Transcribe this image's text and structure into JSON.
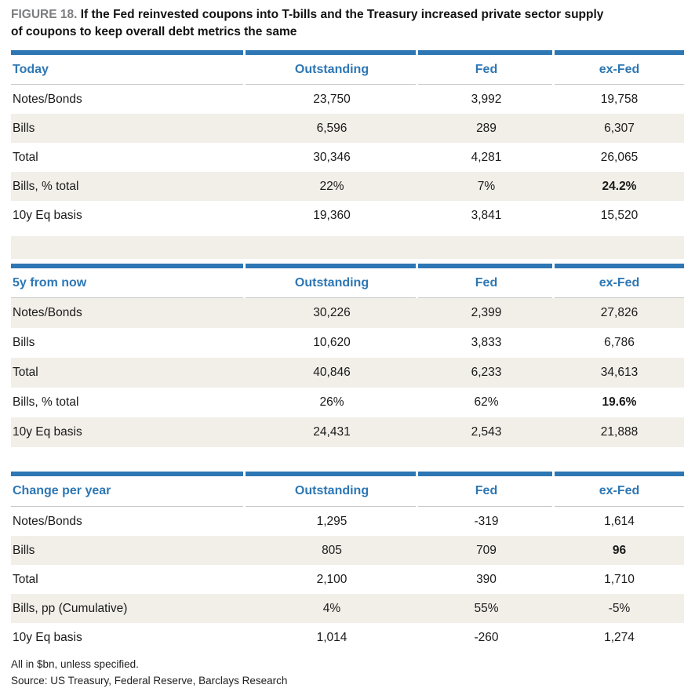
{
  "figure": {
    "label": "FIGURE 18.",
    "title_line1": "If the Fed reinvested coupons into T-bills and the Treasury increased private sector supply",
    "title_line2": "of coupons to keep overall debt metrics the same"
  },
  "tables": [
    {
      "name": "Today",
      "columns": [
        "Outstanding",
        "Fed",
        "ex-Fed"
      ],
      "rows": [
        {
          "label": "Notes/Bonds",
          "values": [
            "23,750",
            "3,992",
            "19,758"
          ],
          "bold_exfed": false
        },
        {
          "label": "Bills",
          "values": [
            "6,596",
            "289",
            "6,307"
          ],
          "bold_exfed": false
        },
        {
          "label": "Total",
          "values": [
            "30,346",
            "4,281",
            "26,065"
          ],
          "bold_exfed": false
        },
        {
          "label": "Bills, % total",
          "values": [
            "22%",
            "7%",
            "24.2%"
          ],
          "bold_exfed": true
        },
        {
          "label": "10y Eq basis",
          "values": [
            "19,360",
            "3,841",
            "15,520"
          ],
          "bold_exfed": false
        }
      ]
    },
    {
      "name": "5y from now",
      "columns": [
        "Outstanding",
        "Fed",
        "ex-Fed"
      ],
      "rows": [
        {
          "label": "Notes/Bonds",
          "values": [
            "30,226",
            "2,399",
            "27,826"
          ],
          "bold_exfed": false
        },
        {
          "label": "Bills",
          "values": [
            "10,620",
            "3,833",
            "6,786"
          ],
          "bold_exfed": false
        },
        {
          "label": "Total",
          "values": [
            "40,846",
            "6,233",
            "34,613"
          ],
          "bold_exfed": false
        },
        {
          "label": "Bills, % total",
          "values": [
            "26%",
            "62%",
            "19.6%"
          ],
          "bold_exfed": true
        },
        {
          "label": "10y Eq basis",
          "values": [
            "24,431",
            "2,543",
            "21,888"
          ],
          "bold_exfed": false
        }
      ]
    },
    {
      "name": "Change per year",
      "columns": [
        "Outstanding",
        "Fed",
        "ex-Fed"
      ],
      "rows": [
        {
          "label": "Notes/Bonds",
          "values": [
            "1,295",
            "-319",
            "1,614"
          ],
          "bold_exfed": false
        },
        {
          "label": "Bills",
          "values": [
            "805",
            "709",
            "96"
          ],
          "bold_exfed": true
        },
        {
          "label": "Total",
          "values": [
            "2,100",
            "390",
            "1,710"
          ],
          "bold_exfed": false
        },
        {
          "label": "Bills, pp (Cumulative)",
          "values": [
            "4%",
            "55%",
            "-5%"
          ],
          "bold_exfed": false
        },
        {
          "label": "10y Eq basis",
          "values": [
            "1,014",
            "-260",
            "1,274"
          ],
          "bold_exfed": false
        }
      ]
    }
  ],
  "footnotes": {
    "units": "All in $bn, unless specified.",
    "source": "Source: US Treasury, Federal Reserve, Barclays Research"
  },
  "colors": {
    "accent_blue": "#2d77b4",
    "row_beige": "#f2efe9",
    "rule_gray": "#c9c9c9",
    "label_gray": "#7c7d80",
    "text": "#1a1a1a"
  }
}
